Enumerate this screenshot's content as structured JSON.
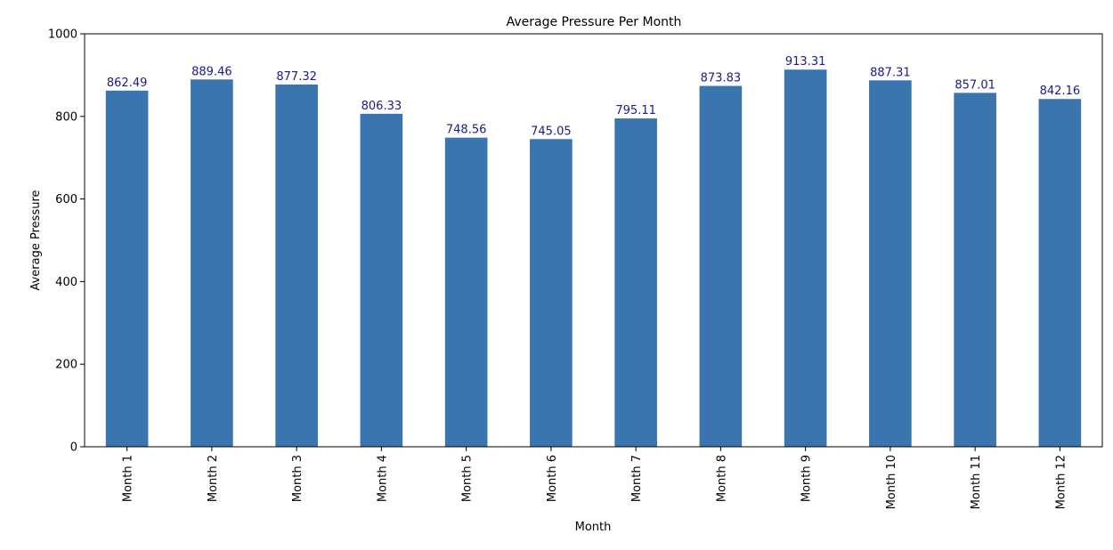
{
  "chart_data": {
    "type": "bar",
    "title": "Average Pressure Per Month",
    "xlabel": "Month",
    "ylabel": "Average Pressure",
    "categories": [
      "Month 1",
      "Month 2",
      "Month 3",
      "Month 4",
      "Month 5",
      "Month 6",
      "Month 7",
      "Month 8",
      "Month 9",
      "Month 10",
      "Month 11",
      "Month 12"
    ],
    "values": [
      862.49,
      889.46,
      877.32,
      806.33,
      748.56,
      745.05,
      795.11,
      873.83,
      913.31,
      887.31,
      857.01,
      842.16
    ],
    "value_labels": [
      "862.49",
      "889.46",
      "877.32",
      "806.33",
      "748.56",
      "745.05",
      "795.11",
      "873.83",
      "913.31",
      "887.31",
      "857.01",
      "842.16"
    ],
    "ylim": [
      0,
      1000
    ],
    "yticks": [
      0,
      200,
      400,
      600,
      800,
      1000
    ],
    "ytick_labels": [
      "0",
      "200",
      "400",
      "600",
      "800",
      "1000"
    ],
    "grid": false,
    "legend": "none",
    "colors": {
      "bar": "#3a75b0",
      "value_label": "#1a1a8c",
      "axis": "#000000",
      "text": "#000000"
    }
  }
}
